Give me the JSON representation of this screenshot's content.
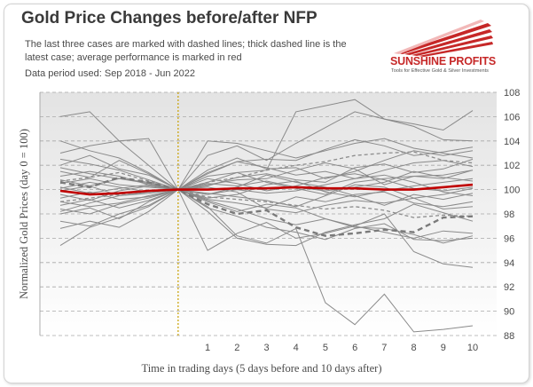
{
  "chart_data": {
    "type": "line",
    "title": "Gold Price Changes before/after NFP",
    "subtitle": "The last three cases are marked with dashed lines; thick dashed line is the latest case; average performance is marked in red",
    "data_period": "Data period used: Sep 2018 - Jun 2022",
    "xlabel": "Time in trading days (5 days before and 10 days after)",
    "ylabel": "Normalized Gold Prices (day 0 = 100)",
    "x": [
      -4,
      -3,
      -2,
      -1,
      0,
      1,
      2,
      3,
      4,
      5,
      6,
      7,
      8,
      9,
      10
    ],
    "x_tick_labels": [
      "1",
      "2",
      "3",
      "4",
      "5",
      "6",
      "7",
      "8",
      "9",
      "10"
    ],
    "y_ticks": [
      88,
      90,
      92,
      94,
      96,
      98,
      100,
      102,
      104,
      106,
      108
    ],
    "ylim": [
      88,
      108
    ],
    "y_axis_position": "right",
    "grid": true,
    "event_marker_x": 0,
    "series": [
      {
        "style": "average",
        "color": "#c00000",
        "values": [
          99.9,
          99.6,
          99.7,
          99.9,
          100.0,
          100.0,
          100.1,
          100.1,
          100.2,
          100.1,
          100.1,
          100.0,
          100.0,
          100.2,
          100.4
        ]
      },
      {
        "style": "latest",
        "color": "#7a7a7a",
        "values": [
          100.6,
          100.2,
          101.0,
          100.6,
          100.0,
          98.8,
          98.0,
          98.3,
          96.9,
          96.2,
          96.4,
          96.7,
          96.5,
          97.7,
          97.8
        ]
      },
      {
        "style": "dashed",
        "color": "#8c8c8c",
        "values": [
          99.0,
          99.3,
          99.6,
          99.9,
          100.0,
          99.4,
          99.2,
          99.0,
          98.7,
          98.4,
          98.6,
          98.3,
          97.7,
          97.9,
          97.8
        ]
      },
      {
        "style": "dashed",
        "color": "#8c8c8c",
        "values": [
          100.7,
          101.0,
          101.4,
          100.7,
          100.0,
          100.6,
          101.0,
          101.6,
          102.0,
          102.3,
          102.8,
          103.0,
          103.1,
          102.4,
          102.2
        ]
      },
      {
        "style": "thin",
        "values": [
          106.0,
          106.4,
          104.0,
          104.2,
          100.0,
          102.8,
          103.6,
          102.4,
          103.8,
          105.1,
          106.4,
          105.8,
          105.2,
          104.1,
          104.0
        ]
      },
      {
        "style": "thin",
        "values": [
          104.0,
          103.2,
          102.6,
          101.4,
          100.0,
          100.6,
          101.4,
          101.6,
          106.4,
          106.9,
          107.4,
          105.8,
          105.4,
          104.9,
          106.5
        ]
      },
      {
        "style": "thin",
        "values": [
          103.0,
          103.6,
          104.0,
          102.0,
          100.0,
          104.0,
          103.8,
          103.2,
          102.6,
          103.2,
          103.8,
          104.2,
          103.4,
          103.0,
          102.6
        ]
      },
      {
        "style": "thin",
        "values": [
          102.5,
          102.1,
          101.6,
          100.8,
          100.0,
          101.3,
          102.3,
          102.5,
          102.4,
          103.3,
          104.1,
          103.6,
          102.8,
          103.1,
          103.5
        ]
      },
      {
        "style": "thin",
        "values": [
          102.0,
          102.8,
          101.7,
          101.2,
          100.0,
          101.6,
          102.6,
          101.7,
          101.8,
          100.9,
          101.5,
          102.4,
          103.2,
          102.8,
          103.2
        ]
      },
      {
        "style": "thin",
        "values": [
          101.5,
          101.0,
          102.4,
          101.3,
          100.0,
          100.4,
          100.8,
          100.9,
          101.6,
          102.2,
          101.7,
          100.4,
          101.1,
          101.2,
          101.6
        ]
      },
      {
        "style": "thin",
        "values": [
          101.1,
          101.5,
          101.1,
          100.4,
          100.0,
          99.6,
          100.2,
          101.2,
          100.6,
          100.2,
          99.5,
          98.7,
          99.6,
          99.2,
          99.7
        ]
      },
      {
        "style": "thin",
        "values": [
          100.8,
          100.3,
          100.9,
          100.6,
          100.0,
          101.1,
          101.4,
          100.6,
          100.1,
          99.6,
          100.6,
          100.9,
          101.1,
          100.9,
          101.6
        ]
      },
      {
        "style": "thin",
        "values": [
          100.5,
          100.9,
          100.4,
          100.2,
          100.0,
          99.7,
          99.4,
          99.1,
          98.6,
          99.5,
          100.4,
          100.2,
          99.3,
          98.4,
          98.6
        ]
      },
      {
        "style": "thin",
        "values": [
          100.2,
          99.7,
          100.1,
          100.4,
          100.0,
          101.4,
          102.3,
          101.8,
          101.2,
          101.5,
          100.9,
          101.6,
          102.2,
          102.4,
          101.9
        ]
      },
      {
        "style": "thin",
        "values": [
          99.9,
          100.3,
          99.5,
          99.7,
          100.0,
          100.2,
          99.8,
          98.4,
          98.1,
          98.7,
          99.1,
          98.9,
          99.3,
          99.6,
          100.1
        ]
      },
      {
        "style": "thin",
        "values": [
          99.6,
          99.1,
          99.9,
          100.3,
          100.0,
          100.5,
          100.3,
          100.7,
          100.2,
          99.9,
          100.2,
          100.6,
          101.5,
          101.0,
          100.7
        ]
      },
      {
        "style": "thin",
        "values": [
          99.3,
          99.8,
          99.2,
          99.4,
          100.0,
          99.1,
          98.4,
          97.6,
          97.1,
          97.6,
          97.0,
          96.5,
          96.0,
          96.6,
          96.4
        ]
      },
      {
        "style": "thin",
        "values": [
          99.0,
          98.6,
          98.9,
          99.5,
          100.0,
          99.6,
          100.0,
          99.7,
          99.9,
          100.4,
          100.9,
          101.2,
          100.6,
          99.8,
          99.5
        ]
      },
      {
        "style": "thin",
        "values": [
          98.7,
          99.2,
          98.5,
          99.1,
          100.0,
          98.5,
          97.8,
          96.9,
          96.5,
          95.9,
          96.8,
          97.2,
          95.9,
          95.8,
          96.0
        ]
      },
      {
        "style": "thin",
        "values": [
          98.4,
          98.0,
          98.8,
          99.3,
          100.0,
          98.6,
          96.2,
          95.6,
          96.8,
          90.7,
          88.9,
          91.4,
          88.3,
          88.5,
          88.8
        ]
      },
      {
        "style": "thin",
        "values": [
          98.0,
          98.5,
          97.6,
          99.0,
          100.0,
          95.0,
          96.4,
          97.3,
          96.0,
          96.4,
          97.0,
          98.0,
          94.9,
          93.9,
          93.6
        ]
      },
      {
        "style": "thin",
        "values": [
          97.4,
          97.0,
          98.0,
          98.7,
          100.0,
          99.2,
          98.9,
          98.5,
          99.4,
          99.0,
          99.6,
          99.8,
          98.9,
          98.6,
          99.0
        ]
      },
      {
        "style": "thin",
        "values": [
          96.8,
          97.4,
          96.9,
          98.2,
          100.0,
          99.0,
          98.2,
          98.8,
          98.5,
          97.6,
          96.9,
          96.8,
          96.3,
          95.6,
          96.2
        ]
      },
      {
        "style": "thin",
        "values": [
          95.4,
          96.9,
          97.7,
          98.6,
          100.0,
          98.2,
          96.0,
          95.5,
          95.4,
          96.5,
          97.1,
          97.6,
          98.8,
          98.1,
          97.4
        ]
      },
      {
        "style": "thin",
        "values": [
          101.8,
          101.3,
          100.9,
          100.5,
          100.0,
          99.3,
          99.6,
          100.4,
          100.7,
          99.8,
          99.4,
          99.9,
          100.3,
          100.6,
          100.9
        ]
      },
      {
        "style": "thin",
        "values": [
          100.1,
          100.6,
          100.2,
          99.8,
          100.0,
          100.9,
          100.5,
          99.9,
          100.3,
          101.0,
          101.3,
          100.8,
          100.1,
          99.9,
          100.2
        ]
      },
      {
        "style": "thin",
        "values": [
          98.2,
          98.9,
          99.5,
          99.8,
          100.0,
          100.3,
          101.0,
          101.3,
          100.8,
          100.6,
          101.8,
          102.1,
          101.4,
          101.7,
          102.5
        ]
      }
    ]
  }
}
